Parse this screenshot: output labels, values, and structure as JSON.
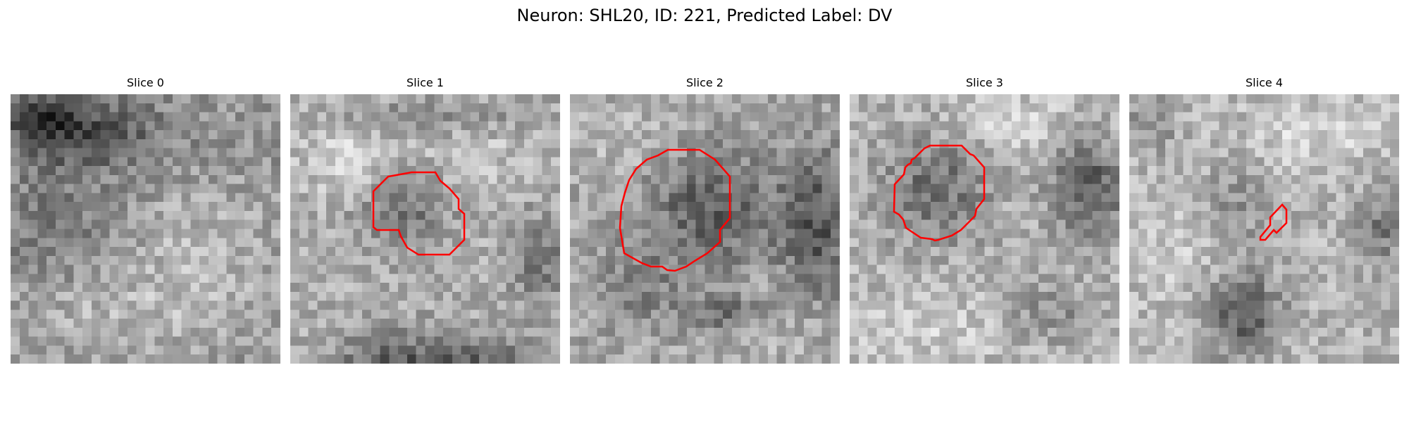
{
  "figure": {
    "title": "Neuron: SHL20, ID: 221, Predicted Label: DV"
  },
  "panels": [
    {
      "title": "Slice 0",
      "has_contour": false
    },
    {
      "title": "Slice 1",
      "has_contour": true
    },
    {
      "title": "Slice 2",
      "has_contour": true
    },
    {
      "title": "Slice 3",
      "has_contour": true
    },
    {
      "title": "Slice 4",
      "has_contour": true
    }
  ],
  "colors": {
    "contour": "#ff0000",
    "background": "#ffffff"
  },
  "colormap": "gray"
}
